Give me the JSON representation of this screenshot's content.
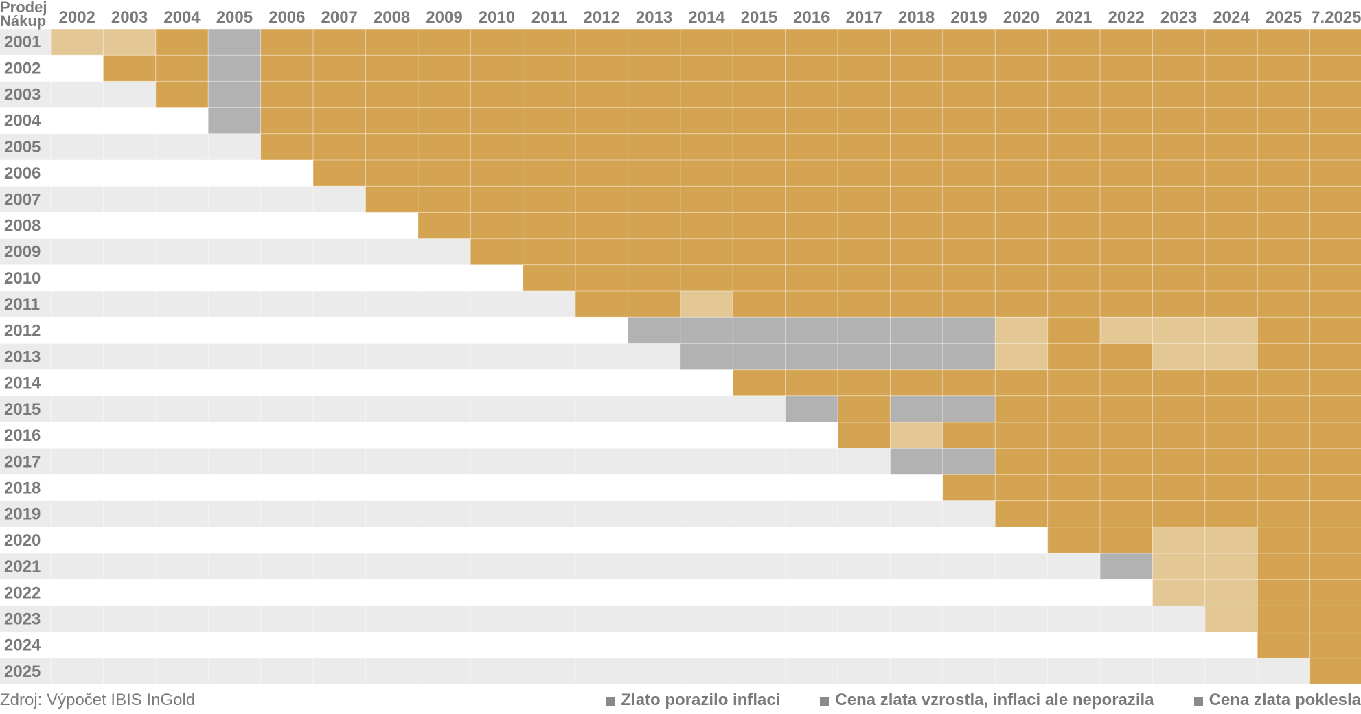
{
  "chart_data": {
    "type": "heatmap",
    "row_axis_label": "Nákup",
    "col_axis_label": "Prodej",
    "columns": [
      "2002",
      "2003",
      "2004",
      "2005",
      "2006",
      "2007",
      "2008",
      "2009",
      "2010",
      "2011",
      "2012",
      "2013",
      "2014",
      "2015",
      "2016",
      "2017",
      "2018",
      "2019",
      "2020",
      "2021",
      "2022",
      "2023",
      "2024",
      "2025",
      "7.2025"
    ],
    "rows": [
      "2001",
      "2002",
      "2003",
      "2004",
      "2005",
      "2006",
      "2007",
      "2008",
      "2009",
      "2010",
      "2011",
      "2012",
      "2013",
      "2014",
      "2015",
      "2016",
      "2017",
      "2018",
      "2019",
      "2020",
      "2021",
      "2022",
      "2023",
      "2024",
      "2025"
    ],
    "categories": {
      "B": {
        "label": "Zlato porazilo inflaci",
        "color": "#d4a452"
      },
      "L": {
        "label": "Cena zlata vzrostla, inflaci ale neporazila",
        "color": "#e3c895"
      },
      "G": {
        "label": "Cena zlata poklesla",
        "color": "#b2b2b2"
      }
    },
    "cells": [
      "LLBGBBBBBBBBBBBBBBBBBBBBB",
      "-BBGBBBBBBBBBBBBBBBBBBBBB",
      "--BGBBBBBBBBBBBBBBBBBBBBB",
      "---GBBBBBBBBBBBBBBBBBBBBB",
      "----BBBBBBBBBBBBBBBBBBBBB",
      "-----BBBBBBBBBBBBBBBBBBBB",
      "------BBBBBBBBBBBBBBBBBBB",
      "-------BBBBBBBBBBBBBBBBBB",
      "--------BBBBBBBBBBBBBBBBB",
      "---------BBBBBBBBBBBBBBBB",
      "----------BBLBBBBBBBBBBBB",
      "-----------GGGGGGGLBLLLBB",
      "------------GGGGGGLBBLLBB",
      "-------------BBBBBBBBBBBB",
      "--------------GBGGBBBBBBB",
      "---------------BLBBBBBBBB",
      "----------------GGBBBBBBB",
      "-----------------BBBBBBBB",
      "------------------BBBBBBB",
      "-------------------BBLLBB",
      "--------------------GLLBB",
      "---------------------LLBB",
      "----------------------LBB",
      "-----------------------BB",
      "------------------------B"
    ],
    "empty_row_colors": [
      "#ebebeb",
      "#ffffff"
    ],
    "grid": true
  },
  "source_note": "Zdroj: Výpočet IBIS InGold",
  "legend": {
    "items": [
      {
        "key": "B",
        "label": "Zlato porazilo inflaci",
        "marker": "■"
      },
      {
        "key": "L",
        "label": "Cena zlata vzrostla, inflaci ale neporazila",
        "marker": "■"
      },
      {
        "key": "G",
        "label": "Cena zlata poklesla",
        "marker": "■"
      }
    ]
  }
}
